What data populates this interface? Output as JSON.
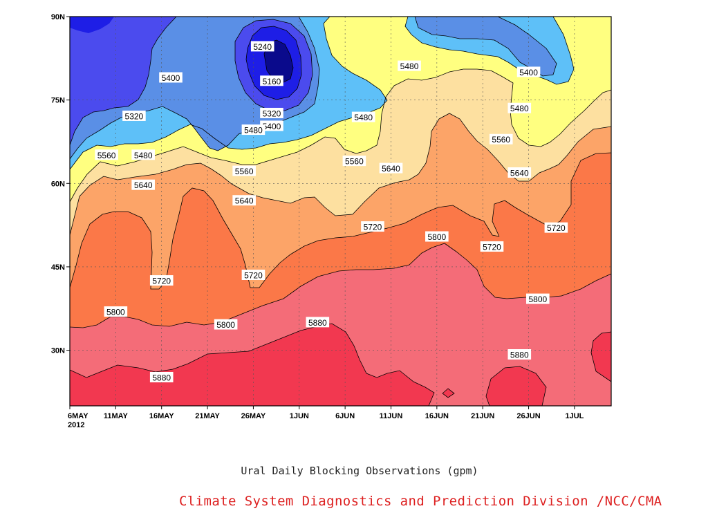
{
  "chart_data": {
    "type": "contour",
    "title": "Ural Daily Blocking Observations (gpm)",
    "xlabel": "",
    "ylabel": "",
    "x_ticks": [
      {
        "label": "6MAY",
        "sub": "2012"
      },
      {
        "label": "11MAY"
      },
      {
        "label": "16MAY"
      },
      {
        "label": "21MAY"
      },
      {
        "label": "26MAY"
      },
      {
        "label": "1JUN"
      },
      {
        "label": "6JUN"
      },
      {
        "label": "11JUN"
      },
      {
        "label": "16JUN"
      },
      {
        "label": "21JUN"
      },
      {
        "label": "26JUN"
      },
      {
        "label": "1JUL"
      }
    ],
    "y_ticks": [
      "30N",
      "45N",
      "60N",
      "75N",
      "90N"
    ],
    "x_range": [
      "2012-05-06",
      "2012-07-04"
    ],
    "y_range": [
      20,
      90
    ],
    "grid": true,
    "levels": [
      5080,
      5160,
      5240,
      5320,
      5400,
      5480,
      5560,
      5640,
      5720,
      5800,
      5880
    ],
    "colors": {
      "5080": "#0a0a8c",
      "5160": "#1e1ee6",
      "5240": "#4b4bee",
      "5320": "#5a8fe6",
      "5400": "#5ec0f8",
      "5480": "#ffff80",
      "5560": "#fde0a0",
      "5640": "#fca468",
      "5720": "#fb7848",
      "5800": "#f46c78",
      "5880": "#f23850"
    },
    "contour_labels": [
      {
        "text": "5240",
        "date": "2012-05-27",
        "lat": 84.6
      },
      {
        "text": "5160",
        "date": "2012-05-28",
        "lat": 78.4
      },
      {
        "text": "5400",
        "date": "2012-05-17",
        "lat": 79.0
      },
      {
        "text": "5480",
        "date": "2012-06-12",
        "lat": 81.1
      },
      {
        "text": "5400",
        "date": "2012-06-25",
        "lat": 80.0
      },
      {
        "text": "5320",
        "date": "2012-05-13",
        "lat": 72.1
      },
      {
        "text": "5320",
        "date": "2012-05-28",
        "lat": 72.6
      },
      {
        "text": "5400",
        "date": "2012-05-28",
        "lat": 70.3
      },
      {
        "text": "5480",
        "date": "2012-05-26",
        "lat": 69.6
      },
      {
        "text": "5480",
        "date": "2012-06-07",
        "lat": 71.9
      },
      {
        "text": "5480",
        "date": "2012-06-24",
        "lat": 73.5
      },
      {
        "text": "5560",
        "date": "2012-05-10",
        "lat": 65.1
      },
      {
        "text": "5480",
        "date": "2012-05-14",
        "lat": 65.1
      },
      {
        "text": "5560",
        "date": "2012-06-22",
        "lat": 67.9
      },
      {
        "text": "5560",
        "date": "2012-06-06",
        "lat": 64.0
      },
      {
        "text": "5560",
        "date": "2012-05-25",
        "lat": 62.2
      },
      {
        "text": "5640",
        "date": "2012-06-10",
        "lat": 62.7
      },
      {
        "text": "5640",
        "date": "2012-06-24",
        "lat": 61.9
      },
      {
        "text": "5640",
        "date": "2012-05-14",
        "lat": 59.7
      },
      {
        "text": "5640",
        "date": "2012-05-25",
        "lat": 56.9
      },
      {
        "text": "5720",
        "date": "2012-06-08",
        "lat": 52.2
      },
      {
        "text": "5720",
        "date": "2012-06-28",
        "lat": 52.0
      },
      {
        "text": "5800",
        "date": "2012-06-15",
        "lat": 50.4
      },
      {
        "text": "5720",
        "date": "2012-06-21",
        "lat": 48.6
      },
      {
        "text": "5720",
        "date": "2012-05-16",
        "lat": 42.5
      },
      {
        "text": "5720",
        "date": "2012-05-26",
        "lat": 43.5
      },
      {
        "text": "5800",
        "date": "2012-05-11",
        "lat": 36.9
      },
      {
        "text": "5800",
        "date": "2012-05-23",
        "lat": 34.6
      },
      {
        "text": "5880",
        "date": "2012-06-02",
        "lat": 35.0
      },
      {
        "text": "5800",
        "date": "2012-06-26",
        "lat": 39.2
      },
      {
        "text": "5880",
        "date": "2012-06-24",
        "lat": 29.2
      },
      {
        "text": "5880",
        "date": "2012-05-16",
        "lat": 25.1
      }
    ]
  },
  "credit": "Climate System Diagnostics and Prediction Division /NCC/CMA"
}
